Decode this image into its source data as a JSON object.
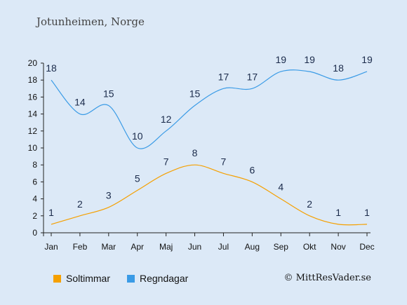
{
  "location": "Jotunheimen, Norge",
  "credit": "© MittResVader.se",
  "chart_data": {
    "type": "line",
    "categories": [
      "Jan",
      "Feb",
      "Mar",
      "Apr",
      "Maj",
      "Jun",
      "Jul",
      "Aug",
      "Sep",
      "Okt",
      "Nov",
      "Dec"
    ],
    "series": [
      {
        "name": "Soltimmar",
        "color": "#f5a000",
        "values": [
          1,
          2,
          3,
          5,
          7,
          8,
          7,
          6,
          4,
          2,
          1,
          1
        ]
      },
      {
        "name": "Regndagar",
        "color": "#3a9be6",
        "values": [
          18,
          14,
          15,
          10,
          12,
          15,
          17,
          17,
          19,
          19,
          18,
          19
        ]
      }
    ],
    "yticks": [
      0,
      2,
      4,
      6,
      8,
      10,
      12,
      14,
      16,
      18,
      20
    ],
    "ylim": [
      0,
      20
    ],
    "grid": false,
    "legend_placement": "bottom-left"
  }
}
